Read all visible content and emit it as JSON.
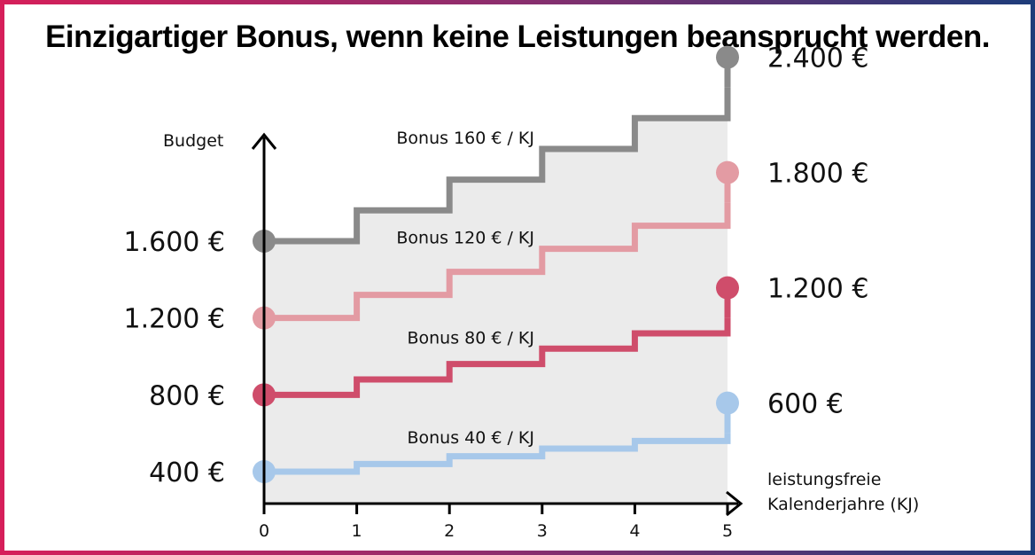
{
  "chart_data": {
    "type": "line",
    "step": true,
    "title": "Einzigartiger Bonus, wenn keine Leistungen beansprucht werden.",
    "ylabel": "Budget",
    "xlabel_lines": [
      "leistungsfreie",
      "Kalenderjahre (KJ)"
    ],
    "x": [
      0,
      1,
      2,
      3,
      4,
      5
    ],
    "x_tick_labels": [
      "0",
      "1",
      "2",
      "3",
      "4",
      "5"
    ],
    "xlim": [
      0,
      5
    ],
    "ylim": [
      300,
      2600
    ],
    "grid": false,
    "series": [
      {
        "start_label": "1.600 €",
        "end_label": "2.400 €",
        "bonus_label": "Bonus 160 € / KJ",
        "values": [
          1600,
          1760,
          1920,
          2080,
          2240,
          2400
        ],
        "color": "#8a8a8a"
      },
      {
        "start_label": "1.200 €",
        "end_label": "1.800 €",
        "bonus_label": "Bonus 120 € / KJ",
        "values": [
          1200,
          1320,
          1440,
          1560,
          1680,
          1800
        ],
        "color": "#e39ba3"
      },
      {
        "start_label": "800 €",
        "end_label": "1.200 €",
        "bonus_label": "Bonus 80 € / KJ",
        "values": [
          800,
          880,
          960,
          1040,
          1120,
          1200
        ],
        "color": "#cf4d6b"
      },
      {
        "start_label": "400 €",
        "end_label": "600 €",
        "bonus_label": "Bonus 40 € / KJ",
        "values": [
          400,
          440,
          480,
          520,
          560,
          600
        ],
        "color": "#a7c8ea"
      }
    ],
    "area_color": "#ebebeb",
    "axis_color": "#000000"
  }
}
